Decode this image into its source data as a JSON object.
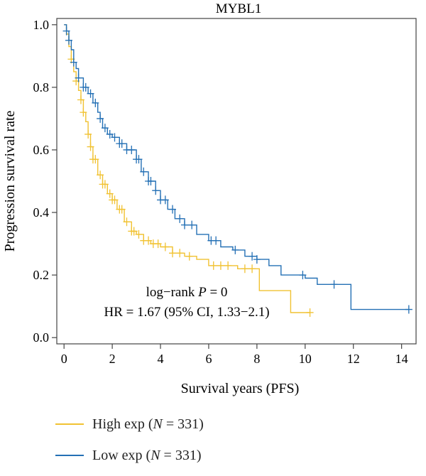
{
  "chart_data": {
    "type": "line",
    "subtype": "kaplan-meier",
    "title": "MYBL1",
    "xlabel": "Survival years (PFS)",
    "ylabel": "Progression survival rate",
    "xlim": [
      -0.3,
      14.6
    ],
    "ylim": [
      -0.02,
      1.02
    ],
    "xticks": [
      0,
      2,
      4,
      6,
      8,
      10,
      12,
      14
    ],
    "yticks": [
      0.0,
      0.2,
      0.4,
      0.6,
      0.8,
      1.0
    ],
    "xtick_labels": [
      "0",
      "2",
      "4",
      "6",
      "8",
      "10",
      "12",
      "14"
    ],
    "ytick_labels": [
      "0.0",
      "0.2",
      "0.4",
      "0.6",
      "0.8",
      "1.0"
    ],
    "annotations": {
      "logrank_prefix": "log−rank ",
      "logrank_p": "P",
      "logrank_suffix": " = 0",
      "hr": "HR = 1.67 (95% CI, 1.33−2.1)"
    },
    "legend": [
      {
        "prefix": "High exp (",
        "n": "N",
        "suffix": " = 331)"
      },
      {
        "prefix": "Low exp (",
        "n": "N",
        "suffix": " = 331)"
      }
    ],
    "series": [
      {
        "name": "High exp",
        "color": "#f1c232",
        "x": [
          0,
          0.1,
          0.2,
          0.3,
          0.4,
          0.5,
          0.6,
          0.7,
          0.8,
          0.9,
          1.0,
          1.1,
          1.2,
          1.4,
          1.6,
          1.8,
          2.0,
          2.2,
          2.5,
          2.8,
          3.0,
          3.3,
          3.6,
          4.0,
          4.5,
          5.0,
          5.5,
          6.0,
          6.8,
          7.2,
          8.0,
          8.1,
          9.3,
          9.4,
          10.2
        ],
        "y": [
          1.0,
          0.97,
          0.93,
          0.89,
          0.85,
          0.82,
          0.79,
          0.76,
          0.72,
          0.69,
          0.65,
          0.61,
          0.57,
          0.52,
          0.49,
          0.46,
          0.44,
          0.41,
          0.37,
          0.34,
          0.33,
          0.31,
          0.3,
          0.29,
          0.27,
          0.26,
          0.25,
          0.23,
          0.23,
          0.22,
          0.22,
          0.15,
          0.15,
          0.08,
          0.08
        ],
        "censor_x": [
          0.3,
          0.5,
          0.7,
          0.8,
          1.0,
          1.1,
          1.2,
          1.3,
          1.5,
          1.6,
          1.7,
          1.9,
          2.0,
          2.1,
          2.3,
          2.4,
          2.6,
          2.8,
          2.9,
          3.1,
          3.3,
          3.5,
          3.7,
          3.9,
          4.2,
          4.5,
          4.8,
          5.2,
          6.2,
          6.5,
          6.8,
          7.5,
          7.8,
          10.2
        ]
      },
      {
        "name": "Low exp",
        "color": "#2470b5",
        "x": [
          0,
          0.1,
          0.2,
          0.3,
          0.4,
          0.5,
          0.6,
          0.8,
          1.0,
          1.2,
          1.4,
          1.5,
          1.6,
          1.8,
          2.0,
          2.3,
          2.6,
          3.0,
          3.2,
          3.5,
          3.8,
          4.0,
          4.3,
          4.6,
          5.0,
          5.5,
          6.0,
          6.5,
          7.0,
          7.5,
          8.0,
          8.5,
          9.0,
          10.0,
          10.5,
          11.0,
          11.9,
          14.3
        ],
        "y": [
          1.0,
          0.98,
          0.95,
          0.92,
          0.88,
          0.86,
          0.83,
          0.8,
          0.78,
          0.75,
          0.72,
          0.7,
          0.67,
          0.65,
          0.64,
          0.62,
          0.6,
          0.57,
          0.53,
          0.5,
          0.47,
          0.44,
          0.41,
          0.38,
          0.36,
          0.33,
          0.31,
          0.29,
          0.28,
          0.26,
          0.25,
          0.23,
          0.2,
          0.19,
          0.17,
          0.17,
          0.09,
          0.09
        ],
        "censor_x": [
          0.1,
          0.2,
          0.4,
          0.6,
          0.8,
          0.9,
          1.1,
          1.3,
          1.5,
          1.7,
          1.9,
          2.1,
          2.3,
          2.4,
          2.6,
          2.8,
          3.0,
          3.1,
          3.3,
          3.5,
          3.6,
          3.8,
          4.0,
          4.2,
          4.5,
          4.8,
          5.0,
          5.3,
          6.1,
          6.3,
          7.1,
          7.8,
          8.0,
          9.9,
          11.2,
          14.3
        ]
      }
    ]
  }
}
